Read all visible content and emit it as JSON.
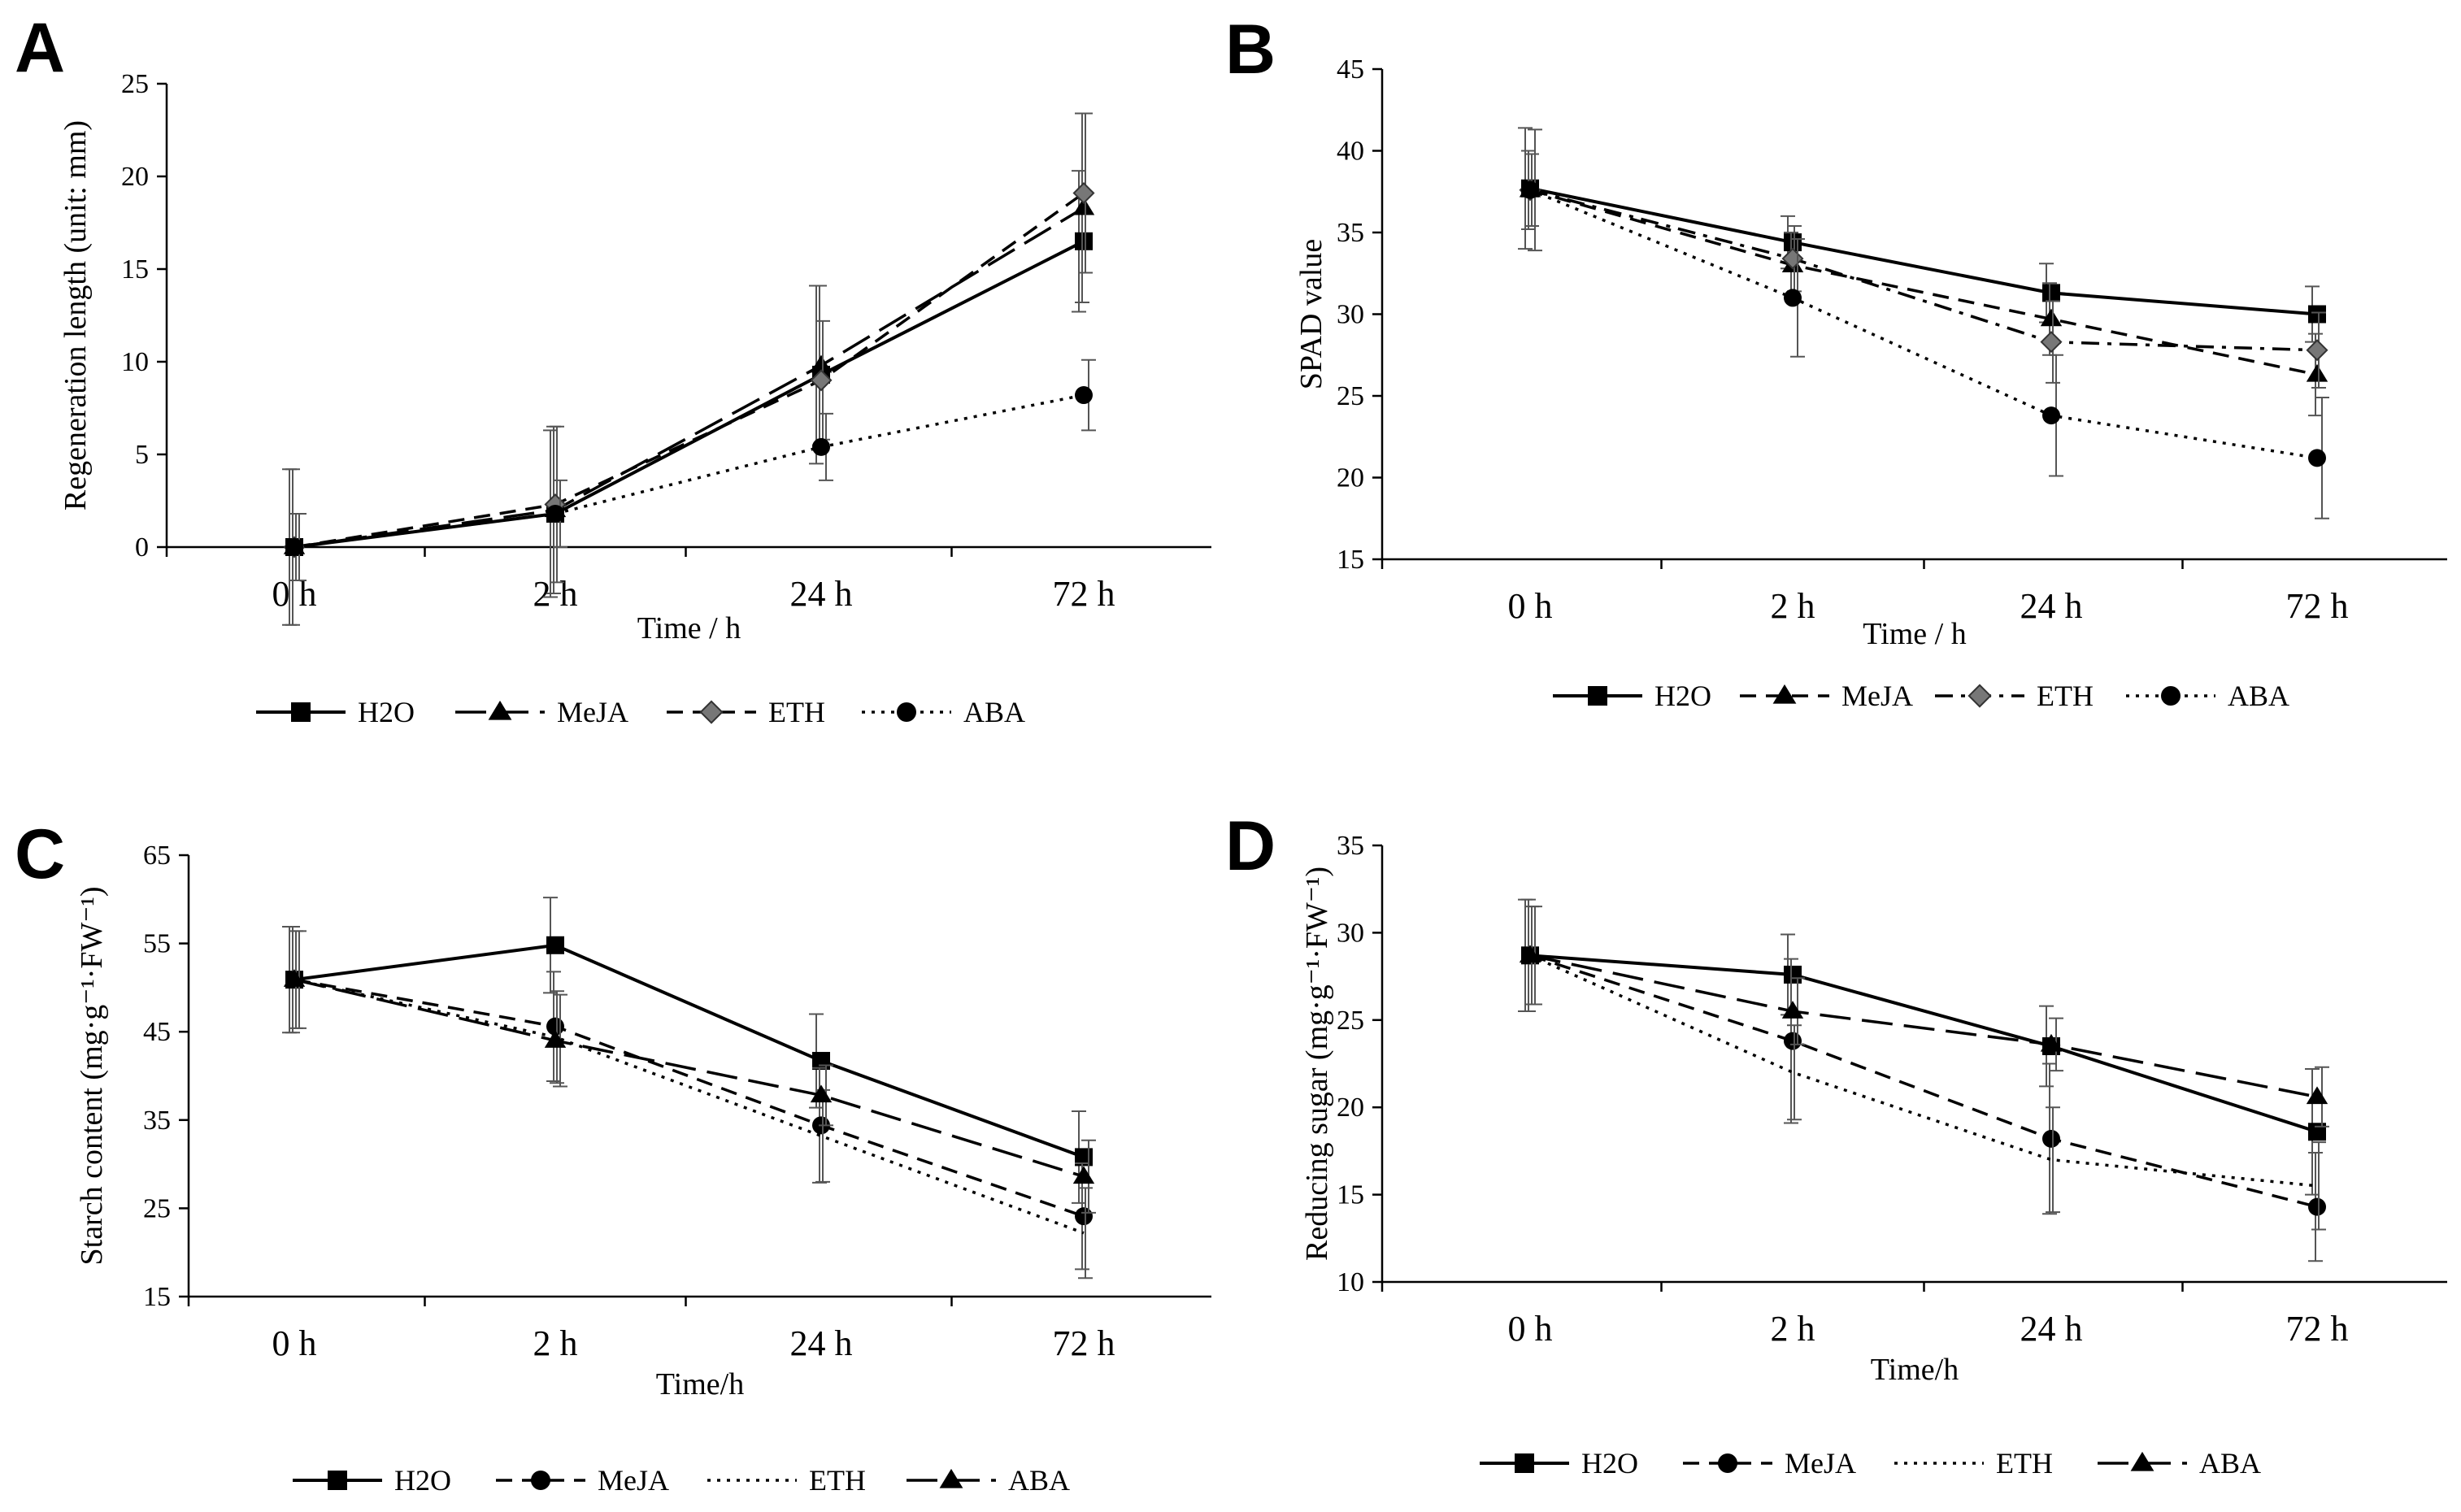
{
  "chart_data": [
    {
      "panel": "A",
      "type": "line",
      "categories": [
        "0 h",
        "2 h",
        "24 h",
        "72 h"
      ],
      "xlabel": "Time / h",
      "ylabel": "Regeneration length (unit: mm)",
      "ylim": [
        0,
        25
      ],
      "yticks": [
        0,
        5,
        10,
        15,
        20,
        25
      ],
      "series": [
        {
          "name": "H2O",
          "values": [
            0,
            1.8,
            9.3,
            16.5
          ],
          "errors": [
            4.2,
            4.5,
            4.8,
            3.8
          ],
          "marker": "square",
          "dash": "solid"
        },
        {
          "name": "MeJA",
          "values": [
            0,
            2.0,
            9.8,
            18.3
          ],
          "errors": [
            4.2,
            4.5,
            4.3,
            5.1
          ],
          "marker": "triangle",
          "dash": "longdash"
        },
        {
          "name": "ETH",
          "values": [
            0,
            2.3,
            9.0,
            19.1
          ],
          "errors": [
            1.8,
            4.2,
            3.2,
            4.3
          ],
          "marker": "diamond",
          "dash": "dash"
        },
        {
          "name": "ABA",
          "values": [
            0,
            1.8,
            5.4,
            8.2
          ],
          "errors": [
            1.8,
            1.8,
            1.8,
            1.9
          ],
          "marker": "circle",
          "dash": "dot"
        }
      ]
    },
    {
      "panel": "B",
      "type": "line",
      "categories": [
        "0 h",
        "2 h",
        "24 h",
        "72 h"
      ],
      "xlabel": "Time / h",
      "ylabel": "SPAD value",
      "ylim": [
        15,
        45
      ],
      "yticks": [
        15,
        20,
        25,
        30,
        35,
        40,
        45
      ],
      "series": [
        {
          "name": "H2O",
          "values": [
            37.7,
            34.4,
            31.3,
            30.0
          ],
          "errors": [
            3.7,
            1.6,
            1.8,
            1.7
          ],
          "marker": "square",
          "dash": "solid"
        },
        {
          "name": "MeJA",
          "values": [
            37.6,
            33.0,
            29.7,
            26.3
          ],
          "errors": [
            2.4,
            2.0,
            2.2,
            2.5
          ],
          "marker": "triangle",
          "dash": "dash"
        },
        {
          "name": "ETH",
          "values": [
            37.6,
            33.4,
            28.3,
            27.8
          ],
          "errors": [
            2.2,
            2.0,
            2.5,
            2.3
          ],
          "marker": "diamond",
          "dash": "dashdot"
        },
        {
          "name": "ABA",
          "values": [
            37.6,
            31.0,
            23.8,
            21.2
          ],
          "errors": [
            3.7,
            3.6,
            3.7,
            3.7
          ],
          "marker": "circle",
          "dash": "dot"
        }
      ]
    },
    {
      "panel": "C",
      "type": "line",
      "categories": [
        "0 h",
        "2 h",
        "24 h",
        "72 h"
      ],
      "xlabel": "Time/h",
      "ylabel": "Starch content (mg·g⁻¹·FW⁻¹)",
      "ylim": [
        15,
        65
      ],
      "yticks": [
        15,
        25,
        35,
        45,
        55,
        65
      ],
      "series": [
        {
          "name": "H2O",
          "values": [
            50.9,
            54.8,
            41.7,
            30.8
          ],
          "errors": [
            6.0,
            5.4,
            5.3,
            5.2
          ],
          "marker": "square",
          "dash": "solid"
        },
        {
          "name": "MeJA",
          "values": [
            50.9,
            45.6,
            34.4,
            24.1
          ],
          "errors": [
            6.0,
            6.2,
            6.5,
            6.0
          ],
          "marker": "circle",
          "dash": "dash"
        },
        {
          "name": "ETH",
          "values": [
            50.9,
            44.4,
            33.2,
            22.2
          ],
          "errors": [
            5.5,
            5.2,
            5.2,
            5.1
          ],
          "marker": "none",
          "dash": "dot"
        },
        {
          "name": "ABA",
          "values": [
            50.9,
            44.0,
            37.8,
            28.6
          ],
          "errors": [
            5.5,
            5.2,
            3.4,
            4.1
          ],
          "marker": "triangle",
          "dash": "longdash"
        }
      ]
    },
    {
      "panel": "D",
      "type": "line",
      "categories": [
        "0 h",
        "2 h",
        "24 h",
        "72 h"
      ],
      "xlabel": "Time/h",
      "ylabel": "Reducing sugar  (mg·g⁻¹·FW⁻¹)",
      "ylim": [
        10,
        35
      ],
      "yticks": [
        10,
        15,
        20,
        25,
        30,
        35
      ],
      "series": [
        {
          "name": "H2O",
          "values": [
            28.7,
            27.6,
            23.5,
            18.6
          ],
          "errors": [
            3.2,
            2.3,
            2.3,
            3.6
          ],
          "marker": "square",
          "dash": "solid"
        },
        {
          "name": "MeJA",
          "values": [
            28.7,
            23.8,
            18.2,
            14.3
          ],
          "errors": [
            3.2,
            4.7,
            4.3,
            3.1
          ],
          "marker": "circle",
          "dash": "dash"
        },
        {
          "name": "ETH",
          "values": [
            28.7,
            22.0,
            17.0,
            15.5
          ],
          "errors": [
            2.8,
            2.7,
            3.0,
            2.5
          ],
          "marker": "none",
          "dash": "dot"
        },
        {
          "name": "ABA",
          "values": [
            28.7,
            25.5,
            23.6,
            20.6
          ],
          "errors": [
            2.8,
            1.9,
            1.5,
            1.7
          ],
          "marker": "triangle",
          "dash": "longdash"
        }
      ]
    }
  ]
}
